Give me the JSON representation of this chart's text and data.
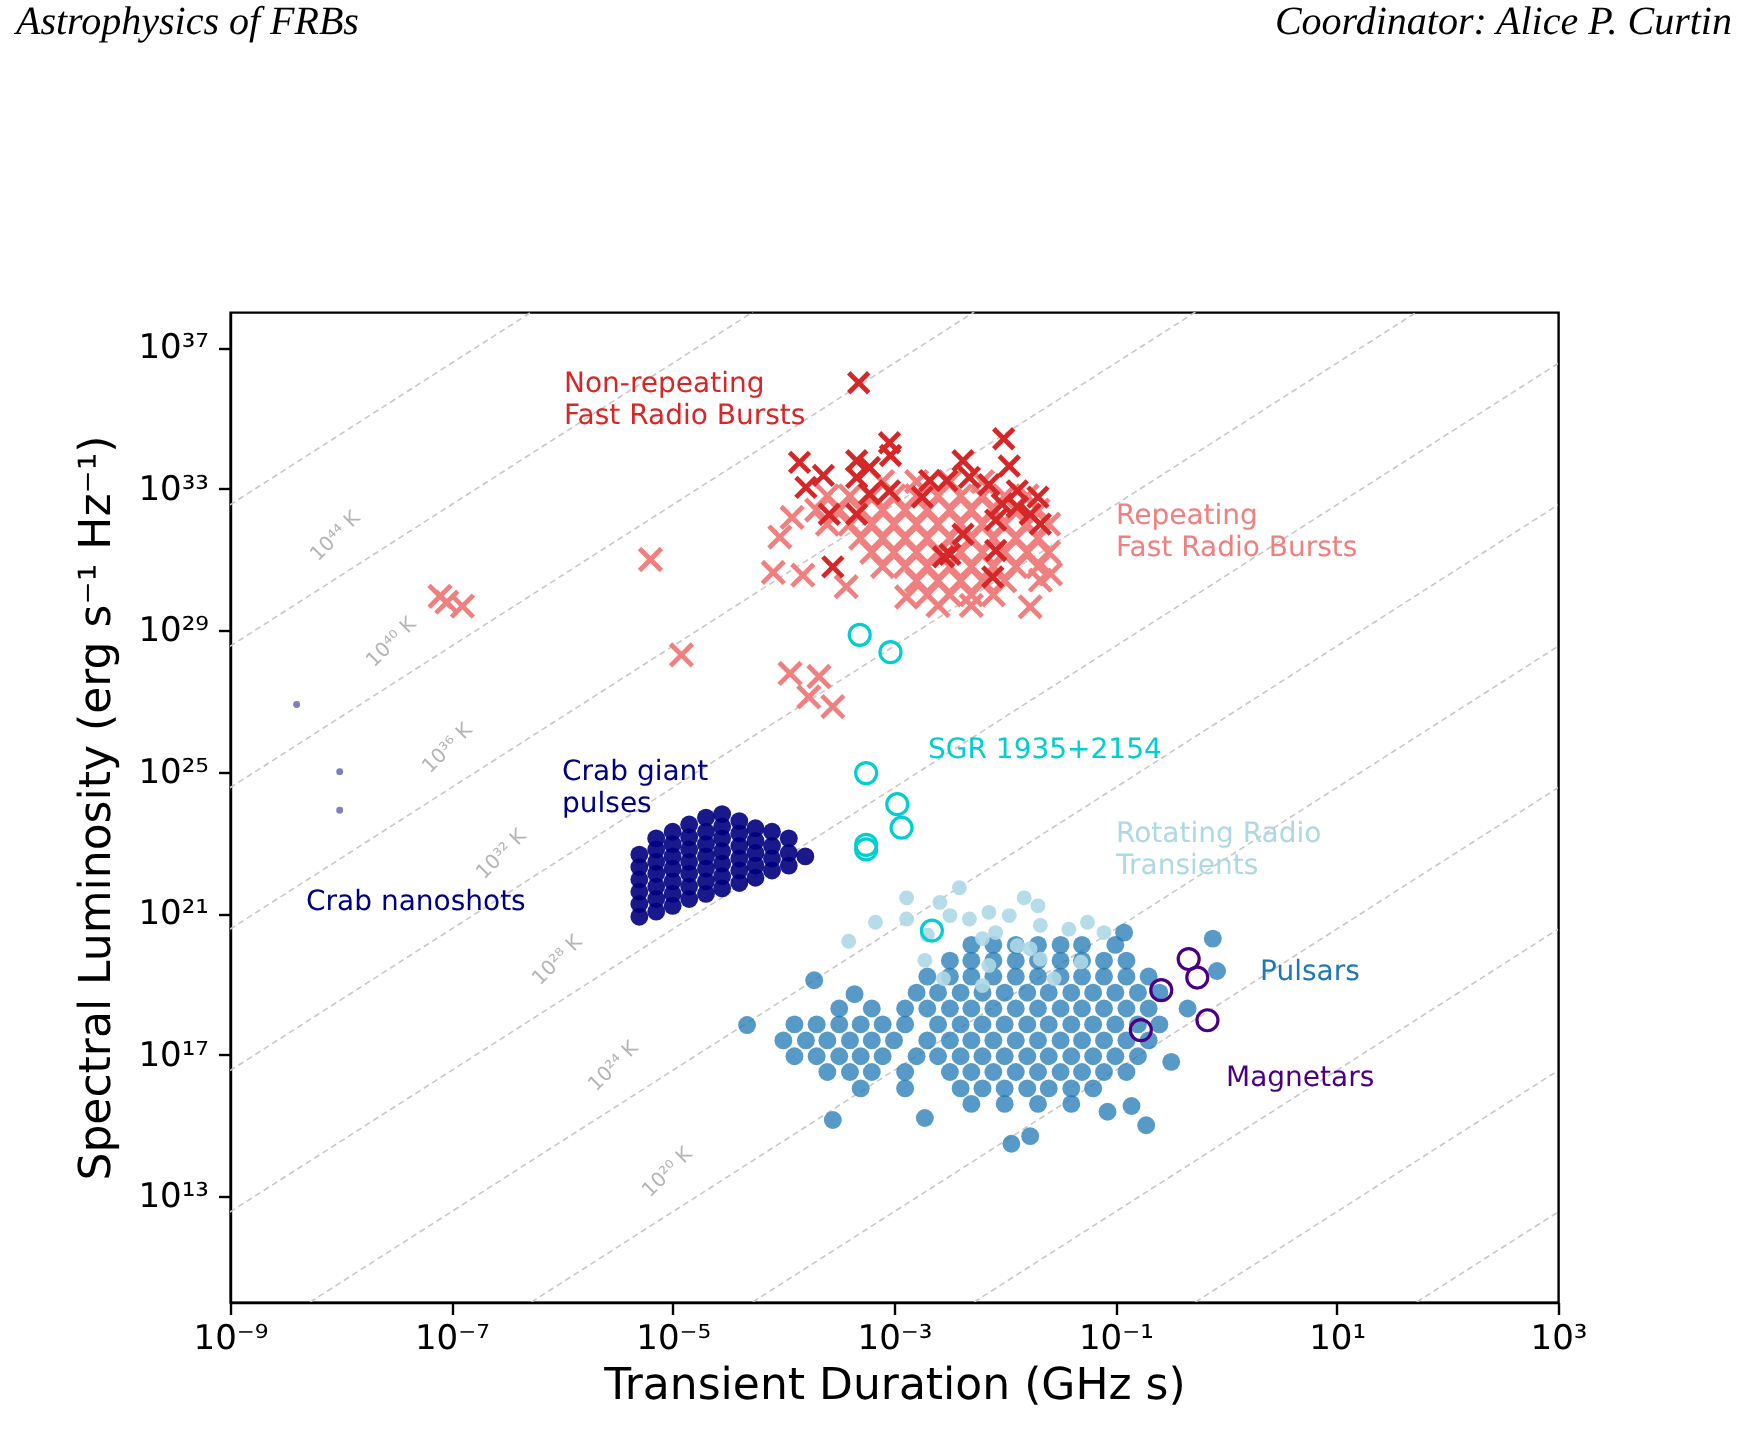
{
  "chart_data": {
    "type": "scatter",
    "log": "xy",
    "xlabel": "Transient Duration (GHz s)",
    "ylabel": "Spectral Luminosity (erg s⁻¹ Hz⁻¹)",
    "xlim": [
      1e-09,
      1000
    ],
    "ylim": [
      10000000000.0,
      1e+38
    ],
    "xticks": [
      {
        "value": 1e-09,
        "label": "10⁻⁹"
      },
      {
        "value": 1e-07,
        "label": "10⁻⁷"
      },
      {
        "value": 1e-05,
        "label": "10⁻⁵"
      },
      {
        "value": 0.001,
        "label": "10⁻³"
      },
      {
        "value": 0.1,
        "label": "10⁻¹"
      },
      {
        "value": 10,
        "label": "10¹"
      },
      {
        "value": 1000,
        "label": "10³"
      }
    ],
    "yticks": [
      {
        "value": 10000000000000.0,
        "label": "10¹³"
      },
      {
        "value": 1e+17,
        "label": "10¹⁷"
      },
      {
        "value": 1e+21,
        "label": "10²¹"
      },
      {
        "value": 1e+25,
        "label": "10²⁵"
      },
      {
        "value": 1e+29,
        "label": "10²⁹"
      },
      {
        "value": 1e+33,
        "label": "10³³"
      },
      {
        "value": 1e+37,
        "label": "10³⁷"
      }
    ],
    "annotations": [
      "Astrophysics of FRBs",
      "Coordinator: Alice P. Curtin",
      "10⁴⁴ K",
      "10⁴⁰ K",
      "10³⁶ K",
      "10³² K",
      "10²⁸ K",
      "10²⁴ K",
      "10²⁰ K"
    ],
    "series": [
      {
        "type": "line",
        "color": "#c8c8c8",
        "line_style": "dashed",
        "x": [
          1e-09,
          5.3e-07
        ],
        "values": [
          3.5e+32,
          1e+38
        ]
      },
      {
        "type": "line",
        "color": "#c8c8c8",
        "line_style": "dashed",
        "x": [
          1e-09,
          5.3e-05
        ],
        "values": [
          3.5e+28,
          1e+38
        ]
      },
      {
        "type": "line",
        "color": "#c8c8c8",
        "line_style": "dashed",
        "x": [
          1e-09,
          0.0053
        ],
        "values": [
          3.5e+24,
          1e+38
        ]
      },
      {
        "type": "line",
        "color": "#c8c8c8",
        "line_style": "dashed",
        "x": [
          1e-09,
          0.53
        ],
        "values": [
          3.5e+20,
          1e+38
        ]
      },
      {
        "type": "line",
        "color": "#c8c8c8",
        "line_style": "dashed",
        "x": [
          1e-09,
          53
        ],
        "values": [
          3.5e+16,
          1e+38
        ]
      },
      {
        "type": "line",
        "color": "#c8c8c8",
        "line_style": "dashed",
        "x": [
          1e-09,
          1000
        ],
        "values": [
          3500000000000.0,
          3.5e+36
        ]
      },
      {
        "type": "line",
        "color": "#c8c8c8",
        "line_style": "dashed",
        "x": [
          5.3e-09,
          1000
        ],
        "values": [
          10000000000.0,
          3.5e+32
        ]
      },
      {
        "type": "line",
        "color": "#c8c8c8",
        "line_style": "dashed",
        "x": [
          5.3e-07,
          1000
        ],
        "values": [
          10000000000.0,
          3.5e+28
        ]
      },
      {
        "type": "line",
        "color": "#c8c8c8",
        "line_style": "dashed",
        "x": [
          5.3e-05,
          1000
        ],
        "values": [
          10000000000.0,
          3.5e+24
        ]
      },
      {
        "type": "line",
        "color": "#c8c8c8",
        "line_style": "dashed",
        "x": [
          0.0053,
          1000
        ],
        "values": [
          10000000000.0,
          3.5e+20
        ]
      },
      {
        "type": "line",
        "color": "#c8c8c8",
        "line_style": "dashed",
        "x": [
          0.53,
          1000
        ],
        "values": [
          10000000000.0,
          3.5e+16
        ]
      },
      {
        "type": "line",
        "color": "#c8c8c8",
        "line_style": "dashed",
        "x": [
          53,
          1000
        ],
        "values": [
          10000000000.0,
          3500000000000.0
        ]
      },
      {
        "name": "Pulsars",
        "color": "#1f77b4",
        "marker": "circle",
        "x": [
          0.005,
          0.0079,
          0.0126,
          0.02,
          0.032,
          0.05,
          0.1,
          0.0032,
          0.005,
          0.0079,
          0.0126,
          0.02,
          0.032,
          0.05,
          0.079,
          0.126,
          0.002,
          0.0032,
          0.005,
          0.0079,
          0.0126,
          0.02,
          0.032,
          0.05,
          0.079,
          0.126,
          0.2,
          0.0016,
          0.0025,
          0.004,
          0.0063,
          0.01,
          0.016,
          0.025,
          0.04,
          0.063,
          0.1,
          0.16,
          0.25,
          0.00032,
          0.00063,
          0.00126,
          0.002,
          0.0032,
          0.005,
          0.0079,
          0.0126,
          0.02,
          0.032,
          0.05,
          0.079,
          0.126,
          0.2,
          0.000126,
          0.0002,
          0.00032,
          0.0005,
          0.00079,
          0.00126,
          0.0025,
          0.004,
          0.0063,
          0.01,
          0.016,
          0.025,
          0.04,
          0.063,
          0.1,
          0.16,
          0.25,
          0.0001,
          0.00016,
          0.00025,
          0.0004,
          0.00063,
          0.001,
          0.002,
          0.0032,
          0.005,
          0.0079,
          0.0126,
          0.02,
          0.032,
          0.05,
          0.079,
          0.126,
          0.2,
          0.000126,
          0.0002,
          0.00032,
          0.0005,
          0.00079,
          0.0016,
          0.0025,
          0.004,
          0.0063,
          0.01,
          0.016,
          0.025,
          0.04,
          0.063,
          0.1,
          0.16,
          0.00025,
          0.0004,
          0.00063,
          0.00126,
          0.0032,
          0.005,
          0.0079,
          0.0126,
          0.02,
          0.032,
          0.05,
          0.079,
          0.126,
          0.0005,
          0.00126,
          0.004,
          0.0063,
          0.01,
          0.016,
          0.025,
          0.04,
          0.063,
          0.005,
          0.01,
          0.02,
          0.04,
          4.7e-05,
          0.00019,
          0.00044,
          0.00028,
          0.0019,
          0.0115,
          0.017,
          0.085,
          0.14,
          0.19,
          0.32,
          0.45,
          0.76,
          0.83,
          0.12
        ],
        "values": [
          1.26e+20,
          1.26e+20,
          1.26e+20,
          1.26e+20,
          1.26e+20,
          1.26e+20,
          1.26e+20,
          4.5e+19,
          4.5e+19,
          4.5e+19,
          4.5e+19,
          4.5e+19,
          4.5e+19,
          4.5e+19,
          4.5e+19,
          4.5e+19,
          1.6e+19,
          1.6e+19,
          1.6e+19,
          1.6e+19,
          1.6e+19,
          1.6e+19,
          1.6e+19,
          1.6e+19,
          1.6e+19,
          1.6e+19,
          1.6e+19,
          5.6e+18,
          5.6e+18,
          5.6e+18,
          5.6e+18,
          5.6e+18,
          5.6e+18,
          5.6e+18,
          5.6e+18,
          5.6e+18,
          5.6e+18,
          5.6e+18,
          5.6e+18,
          2e+18,
          2e+18,
          2e+18,
          2e+18,
          2e+18,
          2e+18,
          2e+18,
          2e+18,
          2e+18,
          2e+18,
          2e+18,
          2e+18,
          2e+18,
          2e+18,
          7.1e+17,
          7.1e+17,
          7.1e+17,
          7.1e+17,
          7.1e+17,
          7.1e+17,
          7.1e+17,
          7.1e+17,
          7.1e+17,
          7.1e+17,
          7.1e+17,
          7.1e+17,
          7.1e+17,
          7.1e+17,
          7.1e+17,
          7.1e+17,
          7.1e+17,
          2.5e+17,
          2.5e+17,
          2.5e+17,
          2.5e+17,
          2.5e+17,
          2.5e+17,
          2.5e+17,
          2.5e+17,
          2.5e+17,
          2.5e+17,
          2.5e+17,
          2.5e+17,
          2.5e+17,
          2.5e+17,
          2.5e+17,
          2.5e+17,
          2.5e+17,
          8.9e+16,
          8.9e+16,
          8.9e+16,
          8.9e+16,
          8.9e+16,
          8.9e+16,
          8.9e+16,
          8.9e+16,
          8.9e+16,
          8.9e+16,
          8.9e+16,
          8.9e+16,
          8.9e+16,
          8.9e+16,
          8.9e+16,
          8.9e+16,
          3.2e+16,
          3.2e+16,
          3.2e+16,
          3.2e+16,
          3.2e+16,
          3.2e+16,
          3.2e+16,
          3.2e+16,
          3.2e+16,
          3.2e+16,
          3.2e+16,
          3.2e+16,
          3.2e+16,
          1.1e+16,
          1.1e+16,
          1.1e+16,
          1.1e+16,
          1.1e+16,
          1.1e+16,
          1.1e+16,
          1.1e+16,
          1.1e+16,
          4000000000000000.0,
          4000000000000000.0,
          4000000000000000.0,
          4000000000000000.0,
          6.8e+17,
          1.26e+19,
          5.1e+18,
          1400000000000000.0,
          1600000000000000.0,
          300000000000000.0,
          490000000000000.0,
          2400000000000000.0,
          3500000000000000.0,
          1000000000000000.0,
          6.2e+16,
          2e+18,
          1.9e+20,
          2.3e+19,
          2.8e+20
        ]
      },
      {
        "name": "Rotating Radio Transients",
        "color": "#add8e6",
        "marker": "circle",
        "x": [
          0.00039,
          0.00068,
          0.0013,
          0.0013,
          0.0026,
          0.0039,
          0.0019,
          0.0032,
          0.0048,
          0.0072,
          0.011,
          0.015,
          0.02,
          0.021,
          0.038,
          0.056,
          0.0063,
          0.013,
          0.021,
          0.0028,
          0.0063,
          0.028,
          0.017,
          0.0072,
          0.049,
          0.079,
          0.0083,
          0.002
        ],
        "values": [
          1.6e+20,
          5.5e+20,
          2.7e+21,
          6.8e+20,
          2e+21,
          5.2e+21,
          4.6e+19,
          8.5e+20,
          6.8e+20,
          1.05e+21,
          8.5e+20,
          2.7e+21,
          1.6e+21,
          4.5e+20,
          3.5e+20,
          5.5e+20,
          1.9e+20,
          1.2e+20,
          5e+19,
          1.4e+19,
          8.9e+18,
          1.4e+19,
          9.8e+19,
          3.3e+19,
          4.1e+19,
          2.8e+20,
          2.8e+20,
          2.4e+20
        ]
      },
      {
        "name": "Magnetars",
        "color": "#4b0082",
        "marker": "circle",
        "x": [
          0.46,
          0.55,
          0.26,
          0.17,
          0.68
        ],
        "values": [
          5e+19,
          1.5e+19,
          6.6e+18,
          4.9e+17,
          9.3e+17
        ]
      },
      {
        "name": "SGR 1935+2154",
        "color": "#00ced1",
        "marker": "circle",
        "x": [
          0.00049,
          0.00093,
          0.00056,
          0.00107,
          0.00117,
          0.00056,
          0.00056,
          0.0022
        ],
        "values": [
          7.4e+28,
          2.4e+28,
          9.1e+24,
          1.2e+24,
          2.6e+23,
          8.5e+22,
          6.3e+22,
          3.2e+20
        ]
      },
      {
        "name": "Crab giant pulses",
        "color": "#000080",
        "marker": "circle",
        "x": [
          5e-06,
          5e-06,
          5e-06,
          5e-06,
          5e-06,
          5e-06,
          7.1e-06,
          7.1e-06,
          7.1e-06,
          7.1e-06,
          7.1e-06,
          7.1e-06,
          7.1e-06,
          1e-05,
          1e-05,
          1e-05,
          1e-05,
          1e-05,
          1e-05,
          1e-05,
          1.41e-05,
          1.41e-05,
          1.41e-05,
          1.41e-05,
          1.41e-05,
          1.41e-05,
          1.41e-05,
          2e-05,
          2e-05,
          2e-05,
          2e-05,
          2e-05,
          2e-05,
          2e-05,
          2.8e-05,
          2.8e-05,
          2.8e-05,
          2.8e-05,
          2.8e-05,
          2.8e-05,
          2.8e-05,
          4e-05,
          4e-05,
          4e-05,
          4e-05,
          4e-05,
          4e-05,
          5.6e-05,
          5.6e-05,
          5.6e-05,
          5.6e-05,
          5.6e-05,
          7.9e-05,
          7.9e-05,
          7.9e-05,
          7.9e-05,
          0.000112,
          0.000112,
          0.000112,
          0.000158
        ],
        "values": [
          7.9e+20,
          1.8e+21,
          4e+21,
          8.9e+21,
          2e+22,
          4.5e+22,
          1.1e+21,
          2.5e+21,
          5.6e+21,
          1.3e+22,
          2.8e+22,
          6.3e+22,
          1.3e+23,
          1.6e+21,
          3.5e+21,
          7.9e+21,
          1.8e+22,
          4e+22,
          8.9e+22,
          2e+23,
          2.5e+21,
          5.6e+21,
          1.3e+22,
          2.8e+22,
          6.3e+22,
          1.4e+23,
          3.2e+23,
          3.5e+21,
          7.9e+21,
          1.8e+22,
          4e+22,
          8.9e+22,
          2e+23,
          5e+23,
          5e+21,
          1.1e+22,
          2.5e+22,
          5.6e+22,
          1.3e+23,
          2.8e+23,
          6.3e+23,
          7.1e+21,
          1.6e+22,
          3.5e+22,
          7.9e+22,
          1.8e+23,
          4e+23,
          1e+22,
          2.2e+22,
          5e+22,
          1.1e+23,
          2.5e+23,
          1.6e+22,
          3.5e+22,
          7.9e+22,
          2e+23,
          2.2e+22,
          5e+22,
          1.3e+23,
          4e+22
        ]
      },
      {
        "name": "Crab nanoshots",
        "color": "#000080",
        "marker": "circle",
        "x": [
          4e-09,
          9.8e-09,
          9.8e-09
        ],
        "values": [
          7.9e+26,
          1e+25,
          8.1e+23
        ]
      },
      {
        "name": "Repeating Fast Radio Bursts",
        "color": "#f08080",
        "marker": "cross",
        "x": [
          0.00079,
          0.0016,
          0.0032,
          0.0063,
          0.00025,
          0.0004,
          0.00063,
          0.001,
          0.0016,
          0.0025,
          0.004,
          0.0063,
          0.01,
          0.016,
          0.0002,
          0.00032,
          0.0005,
          0.00079,
          0.00126,
          0.002,
          0.0032,
          0.005,
          0.0079,
          0.0126,
          0.02,
          0.00025,
          0.0004,
          0.00063,
          0.001,
          0.0016,
          0.0025,
          0.004,
          0.0063,
          0.01,
          0.016,
          0.025,
          0.0005,
          0.00079,
          0.00126,
          0.002,
          0.0032,
          0.005,
          0.0079,
          0.0126,
          0.02,
          0.00063,
          0.001,
          0.0016,
          0.0025,
          0.004,
          0.0063,
          0.01,
          0.016,
          0.025,
          0.00079,
          0.00126,
          0.002,
          0.0032,
          0.005,
          0.0079,
          0.0126,
          0.02,
          0.0016,
          0.0025,
          0.004,
          0.0063,
          0.01,
          0.002,
          0.0032,
          0.005,
          0.0079,
          0.0025,
          0.005,
          7.9e-08,
          9.1e-08,
          1.26e-07,
          6.3e-06,
          1.2e-05,
          0.000115,
          0.00021,
          0.00017,
          0.00028,
          8.1e-05,
          9.3e-05,
          0.00015,
          0.00012,
          0.00037,
          0.0013,
          0.017,
          0.026,
          0.021
        ],
        "values": [
          1.6e+33,
          1.6e+33,
          1.6e+33,
          1.6e+33,
          6.3e+32,
          6.3e+32,
          6.3e+32,
          6.3e+32,
          6.3e+32,
          6.3e+32,
          6.3e+32,
          6.3e+32,
          6.3e+32,
          6.3e+32,
          2.5e+32,
          2.5e+32,
          2.5e+32,
          2.5e+32,
          2.5e+32,
          2.5e+32,
          2.5e+32,
          2.5e+32,
          2.5e+32,
          2.5e+32,
          2.5e+32,
          1e+32,
          1e+32,
          1e+32,
          1e+32,
          1e+32,
          1e+32,
          1e+32,
          1e+32,
          1e+32,
          1e+32,
          1e+32,
          4e+31,
          4e+31,
          4e+31,
          4e+31,
          4e+31,
          4e+31,
          4e+31,
          4e+31,
          4e+31,
          1.6e+31,
          1.6e+31,
          1.6e+31,
          1.6e+31,
          1.6e+31,
          1.6e+31,
          1.6e+31,
          1.6e+31,
          1.6e+31,
          6.3e+30,
          6.3e+30,
          6.3e+30,
          6.3e+30,
          6.3e+30,
          6.3e+30,
          6.3e+30,
          6.3e+30,
          2.5e+30,
          2.5e+30,
          2.5e+30,
          2.5e+30,
          2.5e+30,
          1e+30,
          1e+30,
          1e+30,
          1e+30,
          5e+29,
          5e+29,
          9.1e+29,
          6.2e+29,
          4.8e+29,
          1e+31,
          2e+28,
          6e+27,
          4.9e+27,
          1.3e+27,
          6.9e+26,
          4.3e+30,
          4.3e+31,
          3.6e+30,
          1.55e+32,
          1.7e+30,
          8.7e+29,
          4.6e+29,
          3.9e+30,
          2.6e+30
        ]
      },
      {
        "name": "Non-repeating Fast Radio Bursts",
        "color": "#d62728",
        "marker": "cross",
        "x": [
          0.00048,
          0.0098,
          0.00091,
          0.00093,
          0.00014,
          0.00046,
          0.0042,
          0.011,
          0.00023,
          0.00016,
          0.00046,
          0.0006,
          0.00091,
          0.0021,
          0.003,
          0.0048,
          0.0072,
          0.013,
          0.02,
          0.00026,
          0.00046,
          0.0018,
          0.0095,
          0.017,
          0.0083,
          0.021,
          0.0042,
          0.0032,
          0.0083,
          0.00028,
          0.0078,
          0.0028,
          0.013,
          0.0006
        ],
        "values": [
          1e+36,
          2.6e+34,
          2e+34,
          8.7e+33,
          5.6e+33,
          6.2e+33,
          6.2e+33,
          4.4e+33,
          2.4e+33,
          1.1e+33,
          2.1e+33,
          7.1e+32,
          8.7e+32,
          1.7e+33,
          1.7e+33,
          2.1e+33,
          1.3e+33,
          8.7e+32,
          5.8e+32,
          1.9e+32,
          1.9e+32,
          5.8e+32,
          3.7e+32,
          1.9e+32,
          1.3e+32,
          1e+32,
          5.2e+31,
          1.4e+31,
          1.8e+31,
          6.2e+30,
          3.2e+30,
          1.2e+31,
          3.1e+32,
          4e+33
        ]
      }
    ]
  }
}
